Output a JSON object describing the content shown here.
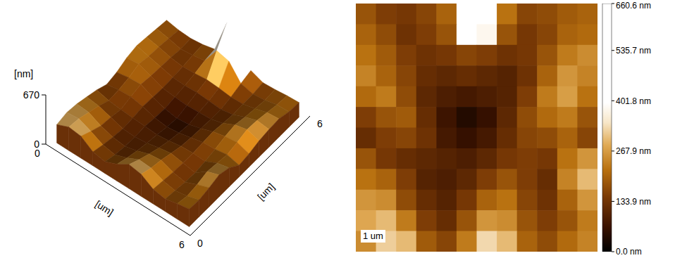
{
  "chart_data": [
    {
      "type": "surface3d",
      "x_label": "[um]",
      "y_label": "[um]",
      "z_label": "[nm]",
      "xlim": [
        0,
        6
      ],
      "xticks": [
        0,
        6
      ],
      "ylim": [
        0,
        6
      ],
      "yticks": [
        0,
        6
      ],
      "zlim": [
        0,
        670
      ],
      "zticks": [
        0,
        670
      ],
      "colorbar": {
        "range": [
          0,
          660.6
        ]
      },
      "cells": [
        [
          180,
          150,
          140,
          160,
          200,
          660,
          660,
          220,
          160,
          170,
          190,
          200
        ],
        [
          200,
          170,
          130,
          150,
          180,
          420,
          380,
          180,
          140,
          160,
          200,
          210
        ],
        [
          220,
          190,
          150,
          130,
          140,
          160,
          150,
          130,
          140,
          180,
          230,
          250
        ],
        [
          240,
          200,
          160,
          120,
          110,
          120,
          110,
          100,
          130,
          200,
          260,
          240
        ],
        [
          210,
          230,
          170,
          110,
          90,
          80,
          90,
          100,
          150,
          230,
          270,
          220
        ],
        [
          150,
          180,
          190,
          120,
          70,
          40,
          60,
          110,
          170,
          210,
          230,
          180
        ],
        [
          120,
          150,
          160,
          130,
          80,
          60,
          80,
          120,
          160,
          170,
          200,
          160
        ],
        [
          180,
          140,
          120,
          110,
          100,
          90,
          110,
          140,
          150,
          140,
          220,
          260
        ],
        [
          220,
          200,
          150,
          100,
          90,
          110,
          150,
          180,
          150,
          120,
          240,
          300
        ],
        [
          260,
          250,
          170,
          120,
          100,
          140,
          200,
          220,
          160,
          130,
          200,
          260
        ],
        [
          280,
          300,
          230,
          150,
          120,
          180,
          260,
          250,
          180,
          150,
          180,
          230
        ],
        [
          250,
          320,
          300,
          190,
          160,
          230,
          330,
          300,
          200,
          170,
          210,
          240
        ]
      ]
    },
    {
      "type": "heatmap",
      "tick_labels": false,
      "xlim": [
        0,
        6
      ],
      "ylim": [
        0,
        6
      ],
      "scale_bar": {
        "length": 1,
        "label": "1 um"
      },
      "colorbar": {
        "range": [
          0,
          660.6
        ],
        "ticks": [
          {
            "value": 0,
            "label": "0.0 nm"
          },
          {
            "value": 133.9,
            "label": "133.9 nm"
          },
          {
            "value": 267.9,
            "label": "267.9 nm"
          },
          {
            "value": 401.8,
            "label": "401.8 nm"
          },
          {
            "value": 535.7,
            "label": "535.7 nm"
          },
          {
            "value": 660.6,
            "label": "660.6 nm"
          }
        ]
      },
      "cells": [
        [
          180,
          150,
          140,
          160,
          200,
          660,
          660,
          220,
          160,
          170,
          190,
          200
        ],
        [
          200,
          170,
          130,
          150,
          180,
          420,
          380,
          180,
          140,
          160,
          200,
          210
        ],
        [
          220,
          190,
          150,
          130,
          140,
          160,
          150,
          130,
          140,
          180,
          230,
          250
        ],
        [
          240,
          200,
          160,
          120,
          110,
          120,
          110,
          100,
          130,
          200,
          260,
          240
        ],
        [
          210,
          230,
          170,
          110,
          90,
          80,
          90,
          100,
          150,
          230,
          270,
          220
        ],
        [
          150,
          180,
          190,
          120,
          70,
          40,
          60,
          110,
          170,
          210,
          230,
          180
        ],
        [
          120,
          150,
          160,
          130,
          80,
          60,
          80,
          120,
          160,
          170,
          200,
          160
        ],
        [
          180,
          140,
          120,
          110,
          100,
          90,
          110,
          140,
          150,
          140,
          220,
          260
        ],
        [
          220,
          200,
          150,
          100,
          90,
          110,
          150,
          180,
          150,
          120,
          240,
          300
        ],
        [
          260,
          250,
          170,
          120,
          100,
          140,
          200,
          220,
          160,
          130,
          200,
          260
        ],
        [
          280,
          300,
          230,
          150,
          120,
          180,
          260,
          250,
          180,
          150,
          180,
          230
        ],
        [
          250,
          320,
          300,
          190,
          160,
          230,
          330,
          300,
          200,
          170,
          210,
          240
        ]
      ]
    }
  ]
}
